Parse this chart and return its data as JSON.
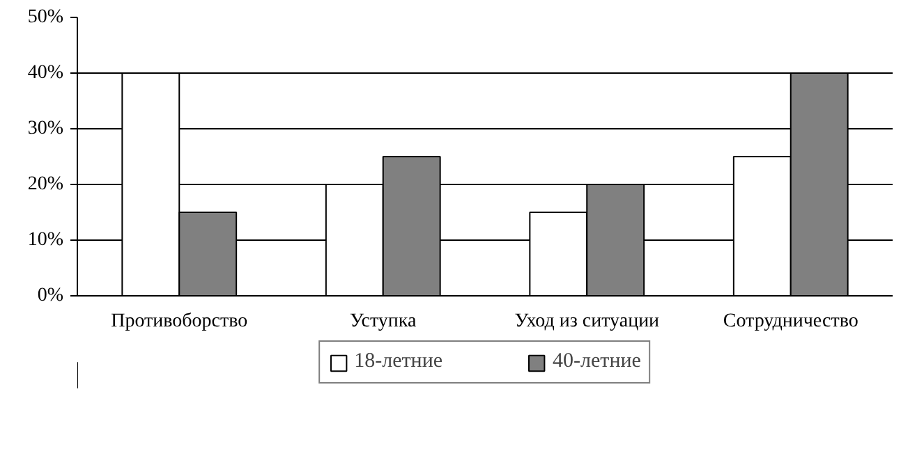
{
  "chart_data": {
    "type": "bar",
    "categories": [
      "Противоборство",
      "Уступка",
      "Уход из ситуации",
      "Сотрудничество"
    ],
    "series": [
      {
        "name": "18-летние",
        "color": "#ffffff",
        "values": [
          40,
          20,
          15,
          25
        ]
      },
      {
        "name": "40-летние",
        "color": "#808080",
        "values": [
          15,
          25,
          20,
          40
        ]
      }
    ],
    "ylim": [
      0,
      50
    ],
    "yticks": [
      {
        "value": 0,
        "label": "0%"
      },
      {
        "value": 10,
        "label": "10%"
      },
      {
        "value": 20,
        "label": "20%"
      },
      {
        "value": 30,
        "label": "30%"
      },
      {
        "value": 40,
        "label": "40%"
      },
      {
        "value": 50,
        "label": "50%"
      }
    ],
    "grid": "y",
    "legend": "bottom"
  }
}
